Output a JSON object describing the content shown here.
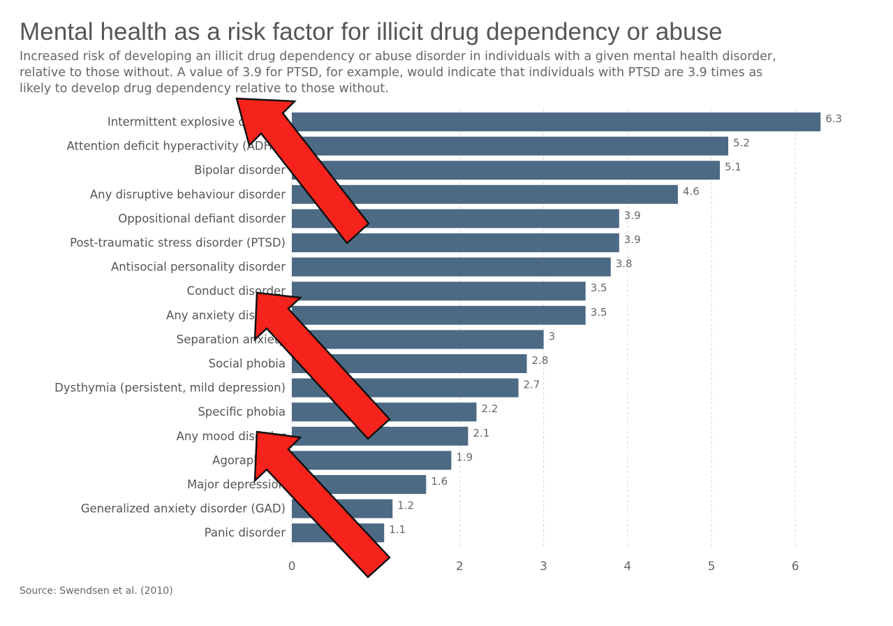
{
  "header": {
    "title": "Mental health as a risk factor for illicit drug dependency or abuse",
    "subtitle": "Increased risk of developing an illicit drug dependency or abuse disorder in individuals with a given mental health disorder, relative to those without. A value of 3.9 for PTSD, for example, would indicate that individuals with PTSD are 3.9 times as likely to develop drug dependency relative to those without."
  },
  "footer": {
    "source": "Source: Swendsen et al. (2010)"
  },
  "colors": {
    "bar": "#4d6a85",
    "grid": "#d8d8d8",
    "arrow_fill": "#f5231b",
    "arrow_stroke": "#111111"
  },
  "chart_data": {
    "type": "bar",
    "orientation": "horizontal",
    "categories": [
      "Intermittent explosive disorder",
      "Attention deficit hyperactivity (ADHD)",
      "Bipolar disorder",
      "Any disruptive behaviour disorder",
      "Oppositional defiant disorder",
      "Post-traumatic stress disorder (PTSD)",
      "Antisocial personality disorder",
      "Conduct disorder",
      "Any anxiety disorder",
      "Separation anxiety",
      "Social phobia",
      "Dysthymia (persistent, mild depression)",
      "Specific phobia",
      "Any mood disorder",
      "Agoraphobia",
      "Major depression",
      "Generalized anxiety disorder (GAD)",
      "Panic disorder"
    ],
    "values": [
      6.3,
      5.2,
      5.1,
      4.6,
      3.9,
      3.9,
      3.8,
      3.5,
      3.5,
      3,
      2.8,
      2.7,
      2.2,
      2.1,
      1.9,
      1.6,
      1.2,
      1.1
    ],
    "xlim": [
      0,
      6.5
    ],
    "xticks": [
      0,
      2,
      3,
      4,
      5,
      6
    ],
    "grid": true,
    "legend": "none"
  },
  "annotations": {
    "arrows": [
      {
        "name": "top-arrow",
        "points_toward": "Intermittent explosive disorder"
      },
      {
        "name": "middle-arrow",
        "points_toward": "Conduct disorder"
      },
      {
        "name": "bottom-arrow",
        "points_toward": "Any mood disorder"
      }
    ]
  }
}
